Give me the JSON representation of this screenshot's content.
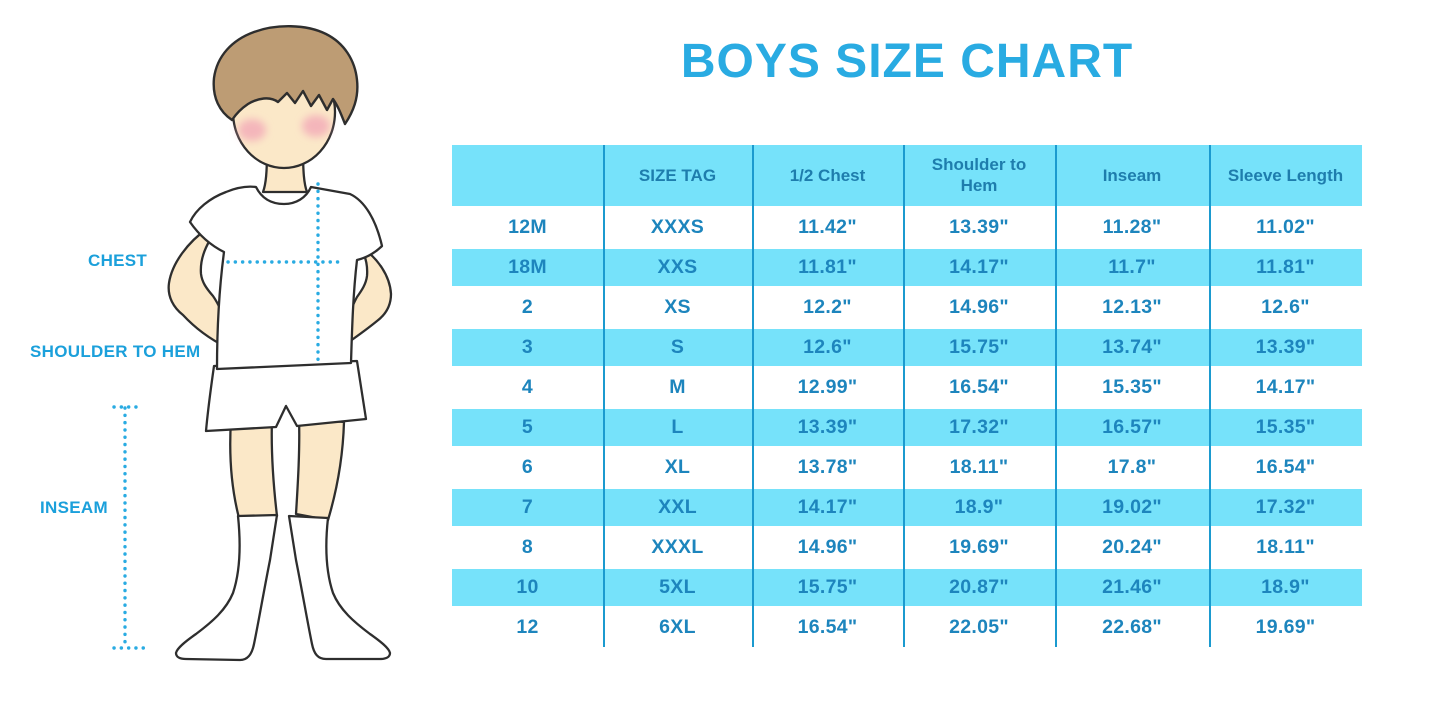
{
  "title": "BOYS SIZE CHART",
  "illustration": {
    "labels": {
      "chest": "CHEST",
      "shoulder_to_hem": "SHOULDER TO HEM",
      "inseam": "INSEAM"
    }
  },
  "chart_data": {
    "type": "table",
    "title": "BOYS SIZE CHART",
    "columns": [
      "",
      "SIZE TAG",
      "1/2 Chest",
      "Shoulder to Hem",
      "Inseam",
      "Sleeve Length"
    ],
    "rows": [
      [
        "12M",
        "XXXS",
        "11.42\"",
        "13.39\"",
        "11.28\"",
        "11.02\""
      ],
      [
        "18M",
        "XXS",
        "11.81\"",
        "14.17\"",
        "11.7\"",
        "11.81\""
      ],
      [
        "2",
        "XS",
        "12.2\"",
        "14.96\"",
        "12.13\"",
        "12.6\""
      ],
      [
        "3",
        "S",
        "12.6\"",
        "15.75\"",
        "13.74\"",
        "13.39\""
      ],
      [
        "4",
        "M",
        "12.99\"",
        "16.54\"",
        "15.35\"",
        "14.17\""
      ],
      [
        "5",
        "L",
        "13.39\"",
        "17.32\"",
        "16.57\"",
        "15.35\""
      ],
      [
        "6",
        "XL",
        "13.78\"",
        "18.11\"",
        "17.8\"",
        "16.54\""
      ],
      [
        "7",
        "XXL",
        "14.17\"",
        "18.9\"",
        "19.02\"",
        "17.32\""
      ],
      [
        "8",
        "XXXL",
        "14.96\"",
        "19.69\"",
        "20.24\"",
        "18.11\""
      ],
      [
        "10",
        "5XL",
        "15.75\"",
        "20.87\"",
        "21.46\"",
        "18.9\""
      ],
      [
        "12",
        "6XL",
        "16.54\"",
        "22.05\"",
        "22.68\"",
        "19.69\""
      ]
    ],
    "layout_hints": {
      "stripe_pattern": "header cyan, then alternating white/cyan starting with white",
      "grid": "vertical dividers only"
    }
  },
  "colors": {
    "title_blue": "#29ABE2",
    "label_blue": "#1BA0DB",
    "dotted_line_blue": "#29ABE2",
    "table_stripe_cyan": "#76E2FA",
    "table_divider_blue": "#1B9ACF",
    "header_text_blue": "#1E7DAD",
    "cell_text_blue": "#1D85BD",
    "hair_brown": "#BD9C74",
    "skin_tone": "#FBE8C8",
    "blush_pink": "#F2A9B8",
    "outline_dark": "#2E2E2E"
  }
}
